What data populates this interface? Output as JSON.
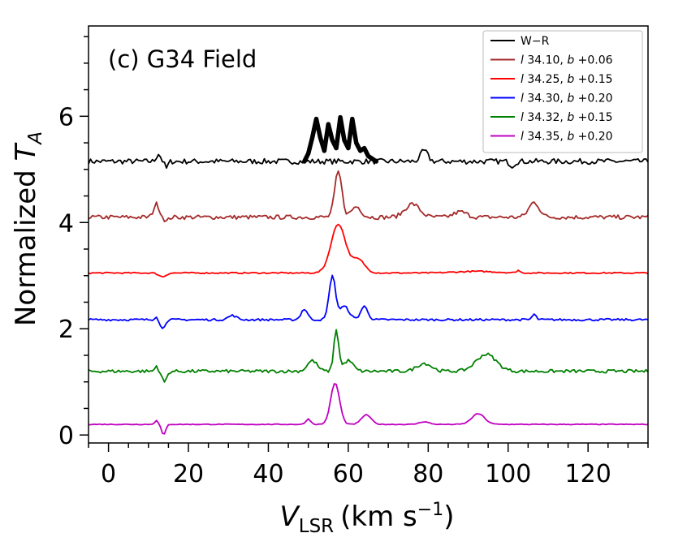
{
  "chart_data": {
    "type": "line",
    "title": "(c) G34 Field",
    "xlabel": {
      "main": "V",
      "sub": "LSR",
      "unit_prefix": "(km s",
      "unit_sup": "−1",
      "unit_suffix": ")"
    },
    "ylabel": {
      "main": "Normalized ",
      "var": "T",
      "sub": "A"
    },
    "xlim": [
      -5,
      135
    ],
    "ylim": [
      -0.15,
      7.7
    ],
    "x_ticks": [
      0,
      20,
      40,
      60,
      80,
      100,
      120
    ],
    "x_tick_labels": [
      "0",
      "20",
      "40",
      "60",
      "80",
      "100",
      "120"
    ],
    "y_ticks": [
      0,
      2,
      4,
      6
    ],
    "y_tick_labels": [
      "0",
      "2",
      "4",
      "6"
    ],
    "grid": false,
    "legend_position": "top-right",
    "series": [
      {
        "name": "W−R",
        "legend": {
          "l": "",
          "b": ""
        },
        "color": "#000000",
        "baseline": 5.15,
        "noise": 0.05,
        "features": [
          [
            12.5,
            0.15,
            0.5
          ],
          [
            14.5,
            -0.13,
            0.4
          ],
          [
            79,
            0.2,
            0.9
          ],
          [
            101,
            -0.08,
            0.6
          ]
        ],
        "highlight": {
          "x_range": [
            49,
            67
          ],
          "values": [
            [
              49,
              5.15
            ],
            [
              50,
              5.3
            ],
            [
              51,
              5.6
            ],
            [
              52,
              5.95
            ],
            [
              53,
              5.6
            ],
            [
              54,
              5.35
            ],
            [
              55,
              5.85
            ],
            [
              56,
              5.55
            ],
            [
              57,
              5.4
            ],
            [
              58,
              5.98
            ],
            [
              59,
              5.55
            ],
            [
              60,
              5.4
            ],
            [
              61,
              5.95
            ],
            [
              62,
              5.5
            ],
            [
              63,
              5.35
            ],
            [
              64,
              5.4
            ],
            [
              65,
              5.25
            ],
            [
              66,
              5.2
            ],
            [
              67,
              5.15
            ]
          ]
        }
      },
      {
        "name": "l 34.10, b +0.06",
        "legend": {
          "l": "34.10",
          "b": "+0.06"
        },
        "color": "#a52a2a",
        "baseline": 4.1,
        "noise": 0.04,
        "features": [
          [
            12,
            0.25,
            0.7
          ],
          [
            14.5,
            -0.08,
            0.5
          ],
          [
            57.5,
            0.85,
            0.9
          ],
          [
            62,
            0.2,
            1.2
          ],
          [
            76,
            0.25,
            1.8
          ],
          [
            88,
            0.1,
            1.6
          ],
          [
            106.5,
            0.28,
            1.3
          ]
        ]
      },
      {
        "name": "l 34.25, b +0.15",
        "legend": {
          "l": "34.25",
          "b": "+0.15"
        },
        "color": "#ff0000",
        "baseline": 3.05,
        "noise": 0.012,
        "features": [
          [
            13.5,
            -0.07,
            0.9
          ],
          [
            57.5,
            0.92,
            1.8
          ],
          [
            62.5,
            0.25,
            1.6
          ],
          [
            102.5,
            0.05,
            0.4
          ],
          [
            92,
            0.03,
            5
          ]
        ]
      },
      {
        "name": "l 34.30, b +0.20",
        "legend": {
          "l": "34.30",
          "b": "+0.20"
        },
        "color": "#0000ff",
        "baseline": 2.17,
        "noise": 0.02,
        "features": [
          [
            12,
            0.07,
            0.4
          ],
          [
            13.5,
            -0.17,
            0.6
          ],
          [
            31,
            0.08,
            1
          ],
          [
            49,
            0.2,
            0.8
          ],
          [
            56,
            0.82,
            0.8
          ],
          [
            59,
            0.25,
            1.2
          ],
          [
            64,
            0.25,
            0.9
          ],
          [
            106.5,
            0.1,
            0.5
          ]
        ]
      },
      {
        "name": "l 34.32, b +0.15",
        "legend": {
          "l": "34.32",
          "b": "+0.15"
        },
        "color": "#008000",
        "baseline": 1.2,
        "noise": 0.03,
        "features": [
          [
            12,
            0.1,
            0.4
          ],
          [
            14,
            -0.2,
            0.6
          ],
          [
            51,
            0.2,
            1.2
          ],
          [
            57,
            0.78,
            0.6
          ],
          [
            60,
            0.2,
            1.2
          ],
          [
            79,
            0.15,
            1.8
          ],
          [
            94.5,
            0.32,
            2.5
          ]
        ]
      },
      {
        "name": "l 34.35, b +0.20",
        "legend": {
          "l": "34.35",
          "b": "+0.20"
        },
        "color": "#c000c0",
        "baseline": 0.2,
        "noise": 0.007,
        "features": [
          [
            12,
            0.08,
            0.4
          ],
          [
            13.8,
            -0.2,
            0.5
          ],
          [
            50,
            0.1,
            0.6
          ],
          [
            56.7,
            0.78,
            1.1
          ],
          [
            64.5,
            0.18,
            1.2
          ],
          [
            79,
            0.05,
            1.2
          ],
          [
            92.5,
            0.2,
            1.6
          ]
        ]
      }
    ]
  }
}
